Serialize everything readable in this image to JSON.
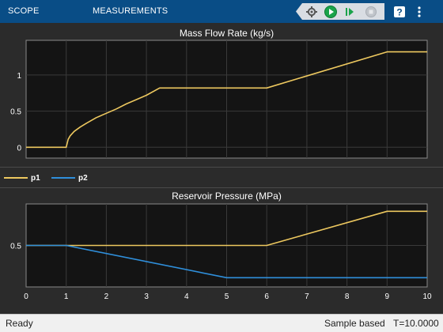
{
  "toolbar": {
    "tabs": [
      {
        "label": "SCOPE"
      },
      {
        "label": "MEASUREMENTS"
      }
    ],
    "icons": [
      "settings-icon",
      "run-icon",
      "step-forward-icon",
      "stop-icon",
      "help-icon",
      "more-icon"
    ],
    "colors": {
      "background": "#094d86",
      "run": "#1aa34a"
    }
  },
  "legend": {
    "items": [
      {
        "label": "p1",
        "color": "#edc85f"
      },
      {
        "label": "p2",
        "color": "#2f8fdb"
      }
    ]
  },
  "status": {
    "ready": "Ready",
    "mode": "Sample based",
    "time": "T=10.0000"
  },
  "chart_data": [
    {
      "type": "line",
      "title": "Mass Flow Rate (kg/s)",
      "xlim": [
        0,
        10
      ],
      "ylim": [
        -0.15,
        1.48
      ],
      "yticks": [
        0,
        0.5,
        1
      ],
      "xticks": [],
      "grid": true,
      "series": [
        {
          "name": "p1",
          "color": "#edc85f",
          "x": [
            0,
            1,
            1.05,
            1.1,
            1.2,
            1.35,
            1.5,
            1.75,
            2,
            2.25,
            2.5,
            2.75,
            3,
            3.33,
            6,
            9,
            10
          ],
          "y": [
            0,
            0,
            0.11,
            0.16,
            0.22,
            0.28,
            0.33,
            0.41,
            0.47,
            0.53,
            0.6,
            0.66,
            0.72,
            0.82,
            0.82,
            1.32,
            1.32
          ]
        }
      ]
    },
    {
      "type": "line",
      "title": "Reservoir Pressure (MPa)",
      "xlim": [
        0,
        10
      ],
      "ylim": [
        0.05,
        0.95
      ],
      "yticks": [
        0.5
      ],
      "xticks": [
        0,
        1,
        2,
        3,
        4,
        5,
        6,
        7,
        8,
        9,
        10
      ],
      "grid": true,
      "series": [
        {
          "name": "p1",
          "color": "#edc85f",
          "x": [
            0,
            6,
            9,
            10
          ],
          "y": [
            0.5,
            0.5,
            0.87,
            0.87
          ]
        },
        {
          "name": "p2",
          "color": "#2f8fdb",
          "x": [
            0,
            1,
            5,
            10
          ],
          "y": [
            0.5,
            0.5,
            0.15,
            0.15
          ]
        }
      ]
    }
  ]
}
